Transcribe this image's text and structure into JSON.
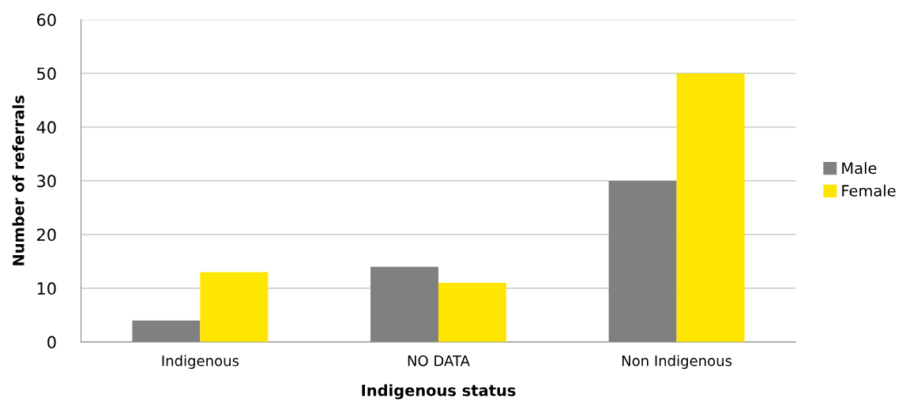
{
  "chart_data": {
    "type": "bar",
    "xlabel": "Indigenous status",
    "ylabel": "Number of referrals",
    "categories": [
      "Indigenous",
      "NO DATA",
      "Non Indigenous"
    ],
    "series": [
      {
        "name": "Male",
        "color": "#808080",
        "values": [
          4,
          14,
          30
        ]
      },
      {
        "name": "Female",
        "color": "#ffe600",
        "values": [
          13,
          11,
          50
        ]
      }
    ],
    "ylim": [
      0,
      60
    ],
    "yticks": [
      0,
      10,
      20,
      30,
      40,
      50,
      60
    ],
    "grid": "y",
    "legend": "right"
  }
}
